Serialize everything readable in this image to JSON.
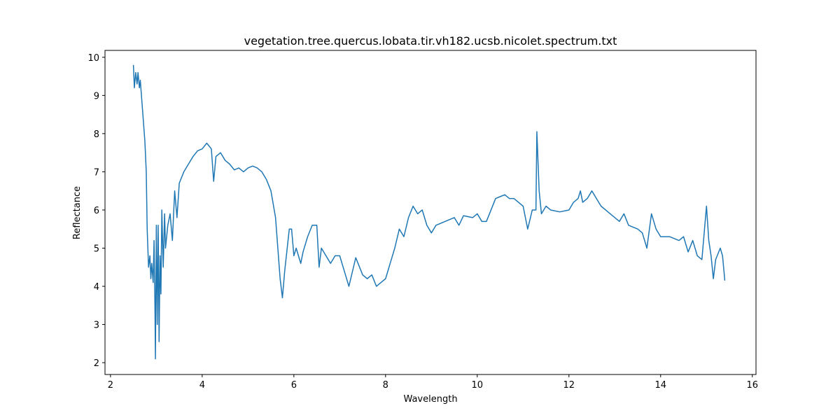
{
  "chart_data": {
    "type": "line",
    "title": "vegetation.tree.quercus.lobata.tir.vh182.ucsb.nicolet.spectrum.txt",
    "xlabel": "Wavelength",
    "ylabel": "Reflectance",
    "xlim": [
      1.88,
      16.08
    ],
    "ylim": [
      1.69,
      10.18
    ],
    "xticks": [
      2,
      4,
      6,
      8,
      10,
      12,
      14,
      16
    ],
    "yticks": [
      2,
      3,
      4,
      5,
      6,
      7,
      8,
      9,
      10
    ],
    "grid": false,
    "series": [
      {
        "color": "#1f77b4",
        "x": [
          2.5,
          2.52,
          2.55,
          2.58,
          2.6,
          2.63,
          2.65,
          2.7,
          2.75,
          2.78,
          2.8,
          2.83,
          2.86,
          2.88,
          2.9,
          2.93,
          2.95,
          2.97,
          2.98,
          3.0,
          3.02,
          3.04,
          3.06,
          3.08,
          3.1,
          3.12,
          3.15,
          3.18,
          3.2,
          3.25,
          3.3,
          3.35,
          3.4,
          3.45,
          3.5,
          3.6,
          3.7,
          3.8,
          3.9,
          4.0,
          4.1,
          4.2,
          4.25,
          4.3,
          4.4,
          4.5,
          4.6,
          4.7,
          4.8,
          4.9,
          5.0,
          5.1,
          5.2,
          5.3,
          5.4,
          5.5,
          5.6,
          5.7,
          5.75,
          5.8,
          5.9,
          5.95,
          6.0,
          6.05,
          6.1,
          6.15,
          6.2,
          6.3,
          6.4,
          6.5,
          6.55,
          6.6,
          6.7,
          6.8,
          6.9,
          7.0,
          7.1,
          7.2,
          7.3,
          7.35,
          7.4,
          7.5,
          7.6,
          7.7,
          7.8,
          7.9,
          8.0,
          8.1,
          8.2,
          8.3,
          8.4,
          8.5,
          8.6,
          8.7,
          8.8,
          8.9,
          9.0,
          9.1,
          9.3,
          9.5,
          9.6,
          9.7,
          9.9,
          10.0,
          10.1,
          10.2,
          10.3,
          10.4,
          10.5,
          10.6,
          10.7,
          10.8,
          10.9,
          11.0,
          11.1,
          11.2,
          11.28,
          11.3,
          11.35,
          11.4,
          11.5,
          11.6,
          11.8,
          12.0,
          12.1,
          12.2,
          12.25,
          12.3,
          12.4,
          12.5,
          12.6,
          12.7,
          12.8,
          12.9,
          13.0,
          13.1,
          13.2,
          13.3,
          13.5,
          13.6,
          13.7,
          13.8,
          13.9,
          14.0,
          14.2,
          14.4,
          14.5,
          14.6,
          14.7,
          14.8,
          14.9,
          15.0,
          15.05,
          15.1,
          15.15,
          15.2,
          15.3,
          15.35,
          15.4
        ],
        "values": [
          9.8,
          9.2,
          9.6,
          9.3,
          9.6,
          9.2,
          9.4,
          8.6,
          7.8,
          7.0,
          5.5,
          4.5,
          4.8,
          4.2,
          4.6,
          4.1,
          5.2,
          3.4,
          2.1,
          5.6,
          3.0,
          5.6,
          2.55,
          4.8,
          3.8,
          6.0,
          4.5,
          5.9,
          5.0,
          5.6,
          5.9,
          5.2,
          6.5,
          5.8,
          6.7,
          7.0,
          7.2,
          7.4,
          7.55,
          7.6,
          7.75,
          7.6,
          6.75,
          7.4,
          7.5,
          7.3,
          7.2,
          7.05,
          7.1,
          7.0,
          7.1,
          7.15,
          7.1,
          7.0,
          6.8,
          6.5,
          5.8,
          4.2,
          3.7,
          4.4,
          5.5,
          5.5,
          4.8,
          5.0,
          4.8,
          4.6,
          4.9,
          5.3,
          5.6,
          5.6,
          4.5,
          5.0,
          4.8,
          4.6,
          4.8,
          4.8,
          4.4,
          4.0,
          4.5,
          4.75,
          4.6,
          4.3,
          4.2,
          4.3,
          4.0,
          4.1,
          4.2,
          4.6,
          5.0,
          5.5,
          5.3,
          5.8,
          6.1,
          5.9,
          6.0,
          5.6,
          5.4,
          5.6,
          5.7,
          5.8,
          5.6,
          5.85,
          5.8,
          5.9,
          5.7,
          5.7,
          6.0,
          6.3,
          6.35,
          6.4,
          6.3,
          6.3,
          6.2,
          6.1,
          5.5,
          6.0,
          6.0,
          8.05,
          6.5,
          5.9,
          6.1,
          6.0,
          5.95,
          6.0,
          6.2,
          6.3,
          6.5,
          6.2,
          6.3,
          6.5,
          6.3,
          6.1,
          6.0,
          5.9,
          5.8,
          5.7,
          5.9,
          5.6,
          5.5,
          5.4,
          5.0,
          5.9,
          5.5,
          5.3,
          5.3,
          5.2,
          5.3,
          4.9,
          5.2,
          4.8,
          4.7,
          6.1,
          5.2,
          4.8,
          4.2,
          4.7,
          5.0,
          4.8,
          4.15
        ]
      }
    ]
  }
}
